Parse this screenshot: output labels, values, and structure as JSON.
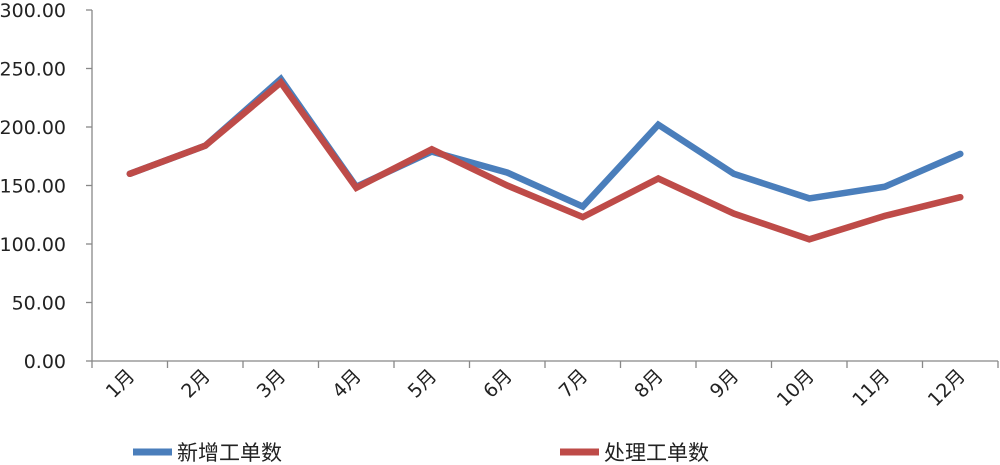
{
  "chart_data": {
    "type": "line",
    "title": "",
    "xlabel": "",
    "ylabel": "",
    "categories": [
      "1月",
      "2月",
      "3月",
      "4月",
      "5月",
      "6月",
      "7月",
      "8月",
      "9月",
      "10月",
      "11月",
      "12月"
    ],
    "ylim": [
      0,
      300
    ],
    "yticks": [
      "0.00",
      "50.00",
      "100.00",
      "150.00",
      "200.00",
      "250.00",
      "300.00"
    ],
    "grid": false,
    "legend_position": "bottom",
    "series": [
      {
        "name": "新增工单数",
        "color": "#4a7ebb",
        "values": [
          160,
          184,
          241,
          149,
          179,
          161,
          132,
          202,
          160,
          139,
          149,
          177
        ]
      },
      {
        "name": "处理工单数",
        "color": "#be4b48",
        "values": [
          160,
          184,
          238,
          148,
          181,
          150,
          123,
          156,
          126,
          104,
          124,
          140
        ]
      }
    ]
  }
}
